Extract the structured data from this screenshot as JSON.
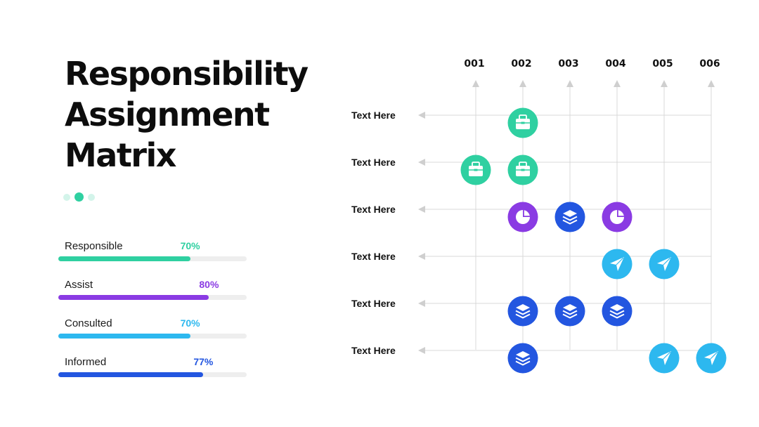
{
  "title": {
    "line1": "Responsibility",
    "line2": "Assignment",
    "line3": "Matrix"
  },
  "pager": {
    "count": 3,
    "active": 1
  },
  "legend": [
    {
      "label": "Responsible",
      "value_text": "70%",
      "value": 70,
      "color": "#2fd0a1"
    },
    {
      "label": "Assist",
      "value_text": "80%",
      "value": 80,
      "color": "#8a3be3"
    },
    {
      "label": "Consulted",
      "value_text": "70%",
      "value": 70,
      "color": "#2db8ef"
    },
    {
      "label": "Informed",
      "value_text": "77%",
      "value": 77,
      "color": "#2356e0"
    }
  ],
  "matrix": {
    "columns": [
      "001",
      "002",
      "003",
      "004",
      "005",
      "006"
    ],
    "rows": [
      "Text Here",
      "Text Here",
      "Text Here",
      "Text Here",
      "Text Here",
      "Text Here"
    ],
    "cells": [
      {
        "row": 0,
        "col": 1,
        "icon": "briefcase-icon",
        "color": "#2fd0a1"
      },
      {
        "row": 1,
        "col": 0,
        "icon": "briefcase-icon",
        "color": "#2fd0a1"
      },
      {
        "row": 1,
        "col": 1,
        "icon": "briefcase-icon",
        "color": "#2fd0a1"
      },
      {
        "row": 2,
        "col": 1,
        "icon": "pie-chart-icon",
        "color": "#8a3be3"
      },
      {
        "row": 2,
        "col": 2,
        "icon": "layers-icon",
        "color": "#2356e0"
      },
      {
        "row": 2,
        "col": 3,
        "icon": "pie-chart-icon",
        "color": "#8a3be3"
      },
      {
        "row": 3,
        "col": 3,
        "icon": "send-icon",
        "color": "#2db8ef"
      },
      {
        "row": 3,
        "col": 4,
        "icon": "send-icon",
        "color": "#2db8ef"
      },
      {
        "row": 4,
        "col": 1,
        "icon": "layers-icon",
        "color": "#2356e0"
      },
      {
        "row": 4,
        "col": 2,
        "icon": "layers-icon",
        "color": "#2356e0"
      },
      {
        "row": 4,
        "col": 3,
        "icon": "layers-icon",
        "color": "#2356e0"
      },
      {
        "row": 5,
        "col": 1,
        "icon": "layers-icon",
        "color": "#2356e0"
      },
      {
        "row": 5,
        "col": 4,
        "icon": "send-icon",
        "color": "#2db8ef"
      },
      {
        "row": 5,
        "col": 5,
        "icon": "send-icon",
        "color": "#2db8ef"
      }
    ]
  }
}
